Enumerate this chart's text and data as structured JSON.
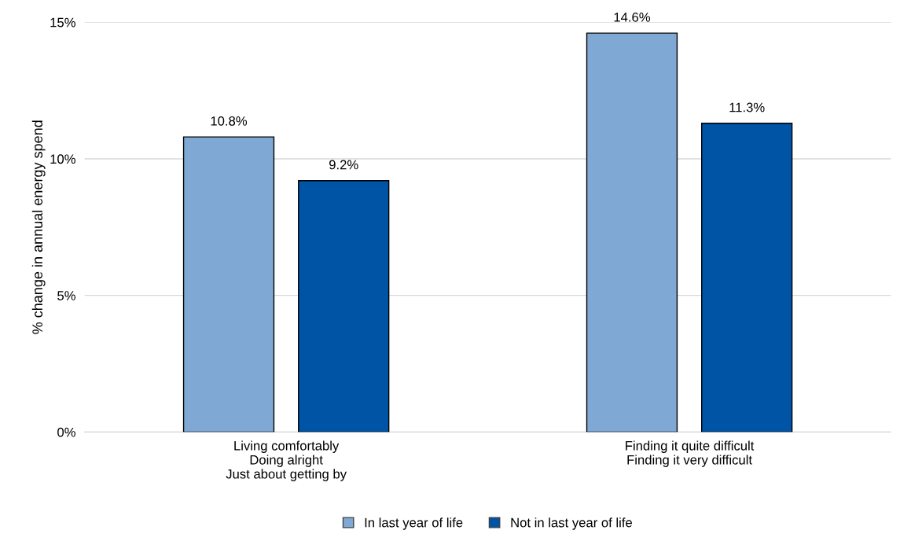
{
  "chart_data": {
    "type": "bar",
    "ylabel": "% change in annual energy spend",
    "categories": [
      "Living comfortably\nDoing alright\nJust about getting by",
      "Finding it quite difficult\nFinding it very difficult"
    ],
    "series": [
      {
        "name": "In last year of life",
        "color": "#7fa9d4",
        "values": [
          10.8,
          14.6
        ],
        "value_labels": [
          "10.8%",
          "14.6%"
        ]
      },
      {
        "name": "Not in last year of life",
        "color": "#0054a6",
        "values": [
          9.2,
          11.3
        ],
        "value_labels": [
          "9.2%",
          "11.3%"
        ]
      }
    ],
    "ylim": [
      0,
      15
    ],
    "yticks": [
      {
        "value": 0,
        "label": "0%"
      },
      {
        "value": 5,
        "label": "5%"
      },
      {
        "value": 10,
        "label": "10%"
      },
      {
        "value": 15,
        "label": "15%"
      }
    ],
    "grid": "y",
    "legend": "bottom"
  }
}
